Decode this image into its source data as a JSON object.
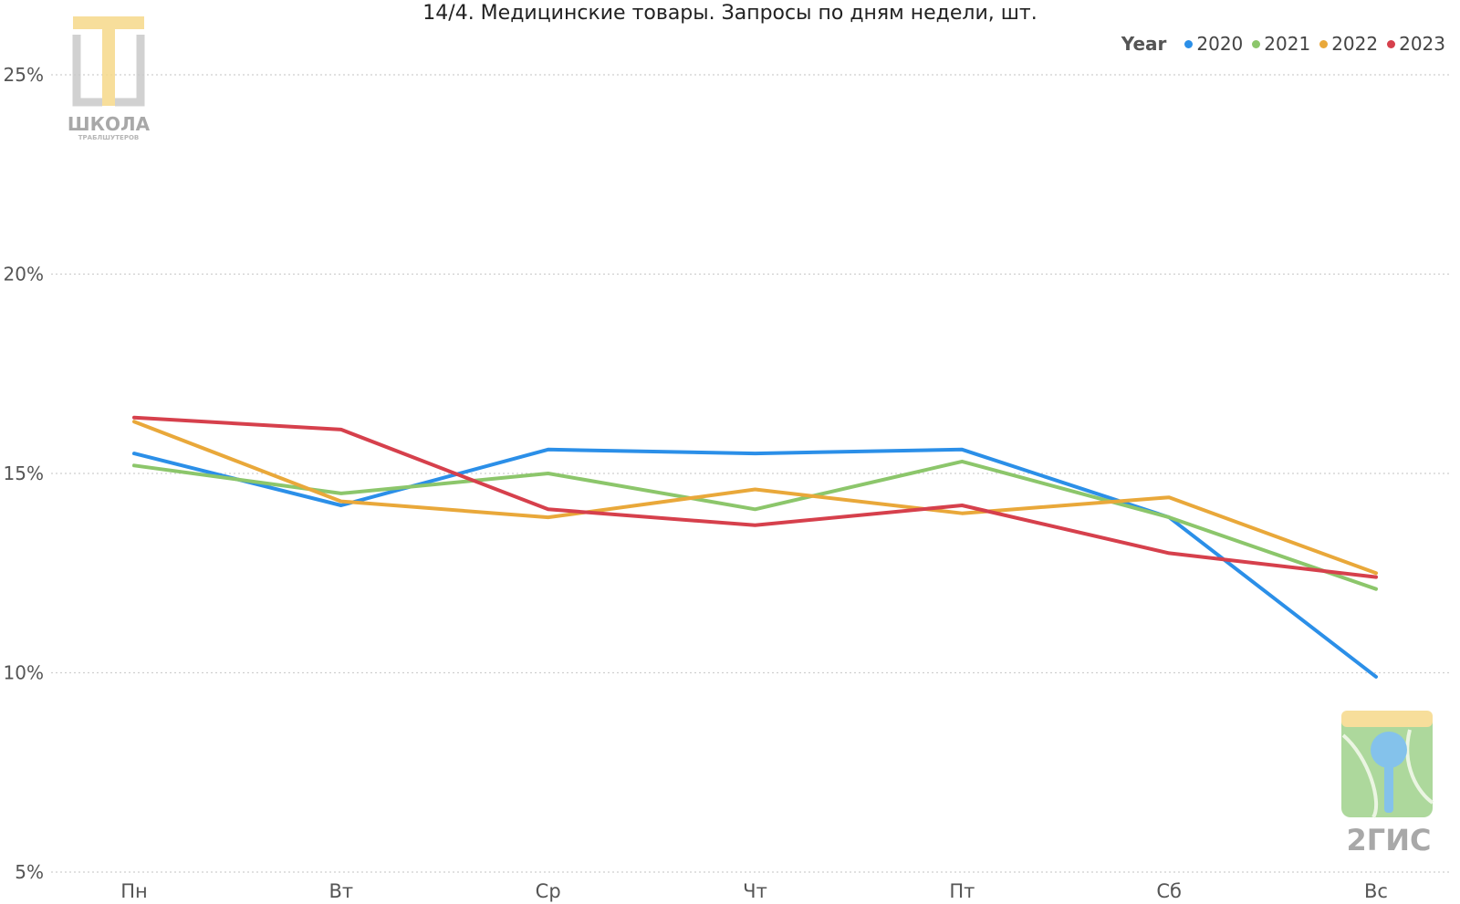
{
  "chart_data": {
    "type": "line",
    "title": "14/4. Медицинские товары. Запросы по дням недели, шт.",
    "categories": [
      "Пн",
      "Вт",
      "Ср",
      "Чт",
      "Пт",
      "Сб",
      "Вс"
    ],
    "y_ticks": [
      "5%",
      "10%",
      "15%",
      "20%",
      "25%"
    ],
    "ylim": [
      5,
      25
    ],
    "grid": true,
    "legend_title": "Year",
    "legend_placement": "top-right",
    "series": [
      {
        "name": "2020",
        "color": "#2b8fe8",
        "values": [
          15.5,
          14.2,
          15.6,
          15.5,
          15.6,
          13.9,
          9.9
        ]
      },
      {
        "name": "2021",
        "color": "#8cc66b",
        "values": [
          15.2,
          14.5,
          15.0,
          14.1,
          15.3,
          13.9,
          12.1
        ]
      },
      {
        "name": "2022",
        "color": "#e9a83a",
        "values": [
          16.3,
          14.3,
          13.9,
          14.6,
          14.0,
          14.4,
          12.5
        ]
      },
      {
        "name": "2023",
        "color": "#d6404c",
        "values": [
          16.4,
          16.1,
          14.1,
          13.7,
          14.2,
          13.0,
          12.4
        ]
      }
    ]
  },
  "logos": {
    "top_left_text": "ШКОЛА",
    "top_left_subtext": "ТРАБЛШУТЕРОВ",
    "bottom_right_text": "2ГИС"
  }
}
